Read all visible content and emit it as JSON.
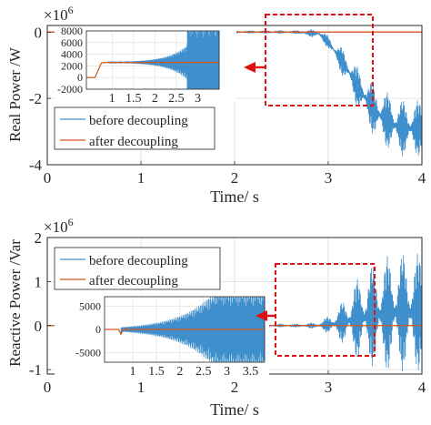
{
  "colors": {
    "before": "#3f8fcc",
    "after": "#d9541e",
    "axis": "#262626",
    "grid": "#dcdcdc",
    "zoom_box": "#e01010",
    "arrow": "#e01010"
  },
  "chart_data": [
    {
      "type": "line",
      "title": "",
      "xlabel": "Time/ s",
      "ylabel": "Real Power /W",
      "exponent_label": "×10",
      "exponent_power": "6",
      "xlim": [
        0,
        4
      ],
      "ylim": [
        -4,
        0.2
      ],
      "xticks": [
        0,
        1,
        2,
        3,
        4
      ],
      "xtick_labels": [
        "0",
        "1",
        "2",
        "3",
        "4"
      ],
      "yticks": [
        -4,
        -2,
        0
      ],
      "ytick_labels": [
        "-4",
        "-2",
        "0"
      ],
      "grid": true,
      "legend_position": "lower-left",
      "series": [
        {
          "name": "before decoupling",
          "color_key": "before",
          "description_points": {
            "x": [
              0,
              2.65,
              2.9,
              3.0,
              3.1,
              3.2,
              3.3,
              3.4,
              3.5,
              3.6,
              3.7,
              3.8,
              3.9,
              4.0
            ],
            "y_center": [
              0.003,
              0.003,
              -0.05,
              -0.3,
              -0.7,
              -1.1,
              -1.6,
              -2.0,
              -2.4,
              -2.6,
              -2.8,
              -2.9,
              -2.9,
              -2.9
            ],
            "y_amplitude": [
              0,
              0.05,
              0.15,
              0.2,
              0.35,
              0.5,
              0.6,
              0.7,
              0.8,
              0.85,
              0.85,
              0.85,
              0.85,
              0.85
            ]
          }
        },
        {
          "name": "after decoupling",
          "color_key": "after",
          "x": [
            0,
            4
          ],
          "y": [
            0.003,
            0.003
          ]
        }
      ],
      "inset": {
        "xlim": [
          0.4,
          3.5
        ],
        "ylim": [
          -2000,
          8000
        ],
        "xticks": [
          1,
          1.5,
          2,
          2.5,
          3
        ],
        "xtick_labels": [
          "1",
          "1.5",
          "2",
          "2.5",
          "3"
        ],
        "yticks": [
          -2000,
          0,
          2000,
          4000,
          6000,
          8000
        ],
        "ytick_labels": [
          "-2000",
          "0",
          "2000",
          "4000",
          "6000",
          "8000"
        ],
        "before": {
          "rise_x": [
            0.4,
            0.6,
            0.75,
            0.85
          ],
          "rise_y": [
            0,
            0,
            2500,
            2600
          ],
          "steady": 2600,
          "osc_start": 0.9,
          "amp_start": 50,
          "growth": 2.2,
          "saturate_x": 2.75,
          "saturate_amp": 6000
        },
        "after": {
          "rise_x": [
            0.4,
            0.6,
            0.75,
            0.85,
            3.5
          ],
          "rise_y": [
            0,
            0,
            2500,
            2600,
            2600
          ]
        }
      }
    },
    {
      "type": "line",
      "title": "",
      "xlabel": "Time/ s",
      "ylabel": "Reactive Power /Var",
      "exponent_label": "×10",
      "exponent_power": "6",
      "xlim": [
        0,
        4
      ],
      "ylim": [
        -1.1,
        2
      ],
      "xticks": [
        0,
        1,
        2,
        3,
        4
      ],
      "xtick_labels": [
        "0",
        "1",
        "2",
        "3",
        "4"
      ],
      "yticks": [
        -1,
        0,
        1,
        2
      ],
      "ytick_labels": [
        "-1",
        "0",
        "1",
        "2"
      ],
      "grid": true,
      "legend_position": "upper-left",
      "series": [
        {
          "name": "before decoupling",
          "color_key": "before",
          "description_points": {
            "x": [
              0,
              2.65,
              2.9,
              3.0,
              3.1,
              3.2,
              3.3,
              3.4,
              3.5,
              3.6,
              3.7,
              3.8,
              3.9,
              4.0
            ],
            "y_center": [
              0,
              0,
              0,
              0.02,
              0.05,
              0.1,
              0.15,
              0.2,
              0.25,
              0.25,
              0.3,
              0.3,
              0.3,
              0.3
            ],
            "y_amplitude": [
              0,
              0.04,
              0.08,
              0.2,
              0.35,
              0.6,
              0.9,
              1.05,
              1.2,
              1.3,
              1.35,
              1.35,
              1.35,
              1.35
            ]
          }
        },
        {
          "name": "after decoupling",
          "color_key": "after",
          "x": [
            0,
            4
          ],
          "y": [
            0,
            0
          ]
        }
      ],
      "inset": {
        "xlim": [
          0.4,
          3.8
        ],
        "ylim": [
          -7000,
          7000
        ],
        "xticks": [
          1,
          1.5,
          2,
          2.5,
          3,
          3.5
        ],
        "xtick_labels": [
          "1",
          "1.5",
          "2",
          "2.5",
          "3",
          "3.5"
        ],
        "yticks": [
          -5000,
          0,
          5000
        ],
        "ytick_labels": [
          "-5000",
          "0",
          "5000"
        ],
        "before": {
          "rise_x": [
            0.4,
            0.7,
            0.75,
            0.8
          ],
          "rise_y": [
            0,
            0,
            -1200,
            0
          ],
          "steady": 0,
          "osc_start": 0.75,
          "amp_start": 500,
          "growth": 1.4,
          "saturate_x": 2.72,
          "saturate_amp": 7000
        },
        "after": {
          "rise_x": [
            0.4,
            0.7,
            0.75,
            0.8,
            3.8
          ],
          "rise_y": [
            0,
            0,
            -1000,
            0,
            0
          ]
        }
      }
    }
  ]
}
